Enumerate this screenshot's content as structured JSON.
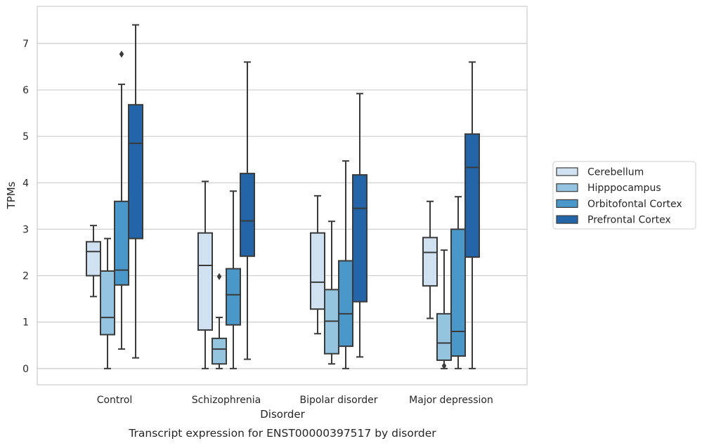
{
  "caption": "Transcript expression for ENST00000397517 by disorder",
  "chart_data": {
    "type": "boxplot",
    "xlabel": "Disorder",
    "ylabel": "TPMs",
    "ylim": [
      -0.35,
      7.8
    ],
    "yticks": [
      0,
      1,
      2,
      3,
      4,
      5,
      6,
      7
    ],
    "grid": "horizontal",
    "legend_position": "right",
    "categories": [
      "Control",
      "Schizophrenia",
      "Bipolar disorder",
      "Major depression"
    ],
    "series": [
      {
        "name": "Cerebellum",
        "color": "#d0e1f2",
        "boxes": [
          {
            "whislo": 1.55,
            "q1": 2.0,
            "med": 2.52,
            "q3": 2.73,
            "whishi": 3.08,
            "fliers": []
          },
          {
            "whislo": 0.0,
            "q1": 0.83,
            "med": 2.22,
            "q3": 2.92,
            "whishi": 4.03,
            "fliers": []
          },
          {
            "whislo": 0.75,
            "q1": 1.28,
            "med": 1.86,
            "q3": 2.92,
            "whishi": 3.72,
            "fliers": []
          },
          {
            "whislo": 1.08,
            "q1": 1.78,
            "med": 2.5,
            "q3": 2.82,
            "whishi": 3.6,
            "fliers": []
          }
        ]
      },
      {
        "name": "Hipppocampus",
        "color": "#94c4df",
        "boxes": [
          {
            "whislo": 0.0,
            "q1": 0.73,
            "med": 1.1,
            "q3": 2.1,
            "whishi": 2.8,
            "fliers": []
          },
          {
            "whislo": 0.0,
            "q1": 0.1,
            "med": 0.42,
            "q3": 0.65,
            "whishi": 1.1,
            "fliers": [
              1.98
            ]
          },
          {
            "whislo": 0.1,
            "q1": 0.32,
            "med": 1.02,
            "q3": 1.7,
            "whishi": 3.17,
            "fliers": []
          },
          {
            "whislo": 0.0,
            "q1": 0.18,
            "med": 0.55,
            "q3": 1.18,
            "whishi": 2.55,
            "fliers": [
              0.06
            ]
          }
        ]
      },
      {
        "name": "Orbitofontal Cortex",
        "color": "#4a98c9",
        "boxes": [
          {
            "whislo": 0.42,
            "q1": 1.8,
            "med": 2.12,
            "q3": 3.6,
            "whishi": 6.12,
            "fliers": [
              6.77
            ]
          },
          {
            "whislo": 0.0,
            "q1": 0.94,
            "med": 1.59,
            "q3": 2.15,
            "whishi": 3.82,
            "fliers": []
          },
          {
            "whislo": 0.0,
            "q1": 0.48,
            "med": 1.18,
            "q3": 2.32,
            "whishi": 4.47,
            "fliers": []
          },
          {
            "whislo": 0.0,
            "q1": 0.27,
            "med": 0.8,
            "q3": 3.0,
            "whishi": 3.7,
            "fliers": []
          }
        ]
      },
      {
        "name": "Prefrontal Cortex",
        "color": "#2365a8",
        "boxes": [
          {
            "whislo": 0.23,
            "q1": 2.8,
            "med": 4.85,
            "q3": 5.68,
            "whishi": 7.4,
            "fliers": []
          },
          {
            "whislo": 0.2,
            "q1": 2.42,
            "med": 3.18,
            "q3": 4.2,
            "whishi": 6.6,
            "fliers": []
          },
          {
            "whislo": 0.25,
            "q1": 1.44,
            "med": 3.45,
            "q3": 4.17,
            "whishi": 5.92,
            "fliers": []
          },
          {
            "whislo": 0.0,
            "q1": 2.4,
            "med": 4.33,
            "q3": 5.05,
            "whishi": 6.6,
            "fliers": []
          }
        ]
      }
    ]
  }
}
